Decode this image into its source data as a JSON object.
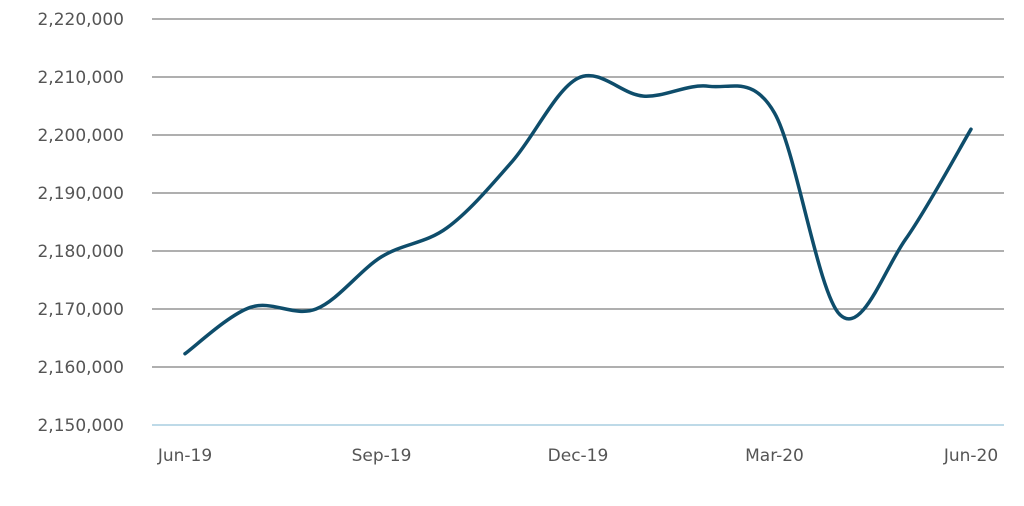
{
  "chart_data": {
    "type": "line",
    "title": "",
    "xlabel": "",
    "ylabel": "",
    "ylim": [
      2150000,
      2220000
    ],
    "y_ticks": [
      2150000,
      2160000,
      2170000,
      2180000,
      2190000,
      2200000,
      2210000,
      2220000
    ],
    "y_tick_labels": [
      "2,150,000",
      "2,160,000",
      "2,170,000",
      "2,180,000",
      "2,190,000",
      "2,200,000",
      "2,210,000",
      "2,220,000"
    ],
    "x_tick_labels": [
      "Jun-19",
      "Sep-19",
      "Dec-19",
      "Mar-20",
      "Jun-20"
    ],
    "x_tick_index": [
      0,
      3,
      6,
      9,
      12
    ],
    "grid": true,
    "legend": "none",
    "line_color": "#0e4d6b",
    "grid_color": "#7f7f7f",
    "baseline_color": "#a9cde0",
    "series": [
      {
        "x": [
          "Jun-19",
          "Jul-19",
          "Aug-19",
          "Sep-19",
          "Oct-19",
          "Nov-19",
          "Dec-19",
          "Jan-20",
          "Feb-20",
          "Mar-20",
          "Apr-20",
          "May-20",
          "Jun-20"
        ],
        "values": [
          2162300,
          2170300,
          2170000,
          2179000,
          2184000,
          2195500,
          2209800,
          2206700,
          2208400,
          2203800,
          2169000,
          2182000,
          2201000
        ]
      }
    ]
  }
}
